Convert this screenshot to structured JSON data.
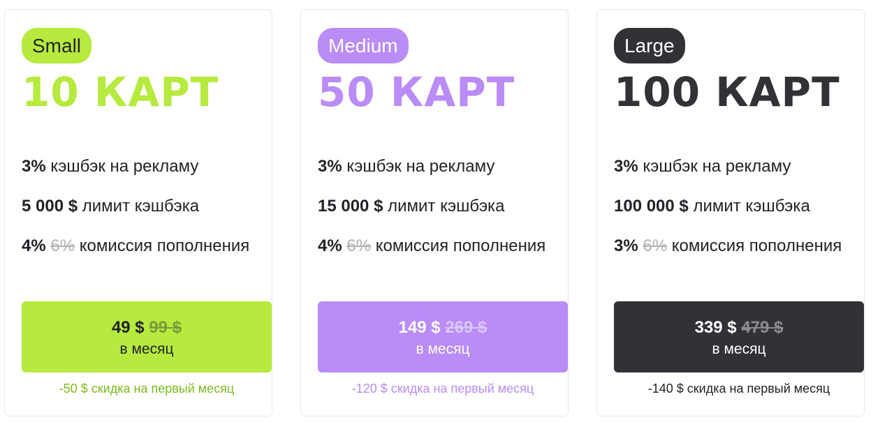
{
  "colors": {
    "small": "#b6ea3e",
    "small_text": "#7dbb1f",
    "medium": "#b98cf7",
    "dark": "#303236",
    "text": "#222327",
    "muted": "#b0b0b4"
  },
  "plans": [
    {
      "badge": "Small",
      "headline": "10 КАРТ",
      "features": [
        {
          "strong": "3%",
          "old": "",
          "text": " кэшбэк на рекламу"
        },
        {
          "strong": "5 000 $",
          "old": "",
          "text": " лимит кэшбэка"
        },
        {
          "strong": "4%",
          "old": "6%",
          "text": " комиссия пополнения"
        }
      ],
      "price_new": "49 $",
      "price_old": "99 $",
      "period": "в месяц",
      "discount": "-50 $ скидка на первый месяц"
    },
    {
      "badge": "Medium",
      "headline": "50 КАРТ",
      "features": [
        {
          "strong": "3%",
          "old": "",
          "text": " кэшбэк на рекламу"
        },
        {
          "strong": "15 000 $",
          "old": "",
          "text": " лимит кэшбэка"
        },
        {
          "strong": "4%",
          "old": "6%",
          "text": " комиссия пополнения"
        }
      ],
      "price_new": "149 $",
      "price_old": "269 $",
      "period": "в месяц",
      "discount": "-120 $ скидка на первый месяц"
    },
    {
      "badge": "Large",
      "headline": "100 КАРТ",
      "features": [
        {
          "strong": "3%",
          "old": "",
          "text": " кэшбэк на рекламу"
        },
        {
          "strong": "100 000 $",
          "old": "",
          "text": " лимит кэшбэка"
        },
        {
          "strong": "3%",
          "old": "6%",
          "text": " комиссия пополнения"
        }
      ],
      "price_new": "339 $",
      "price_old": "479 $",
      "period": "в месяц",
      "discount": "-140 $ скидка на первый месяц"
    }
  ]
}
